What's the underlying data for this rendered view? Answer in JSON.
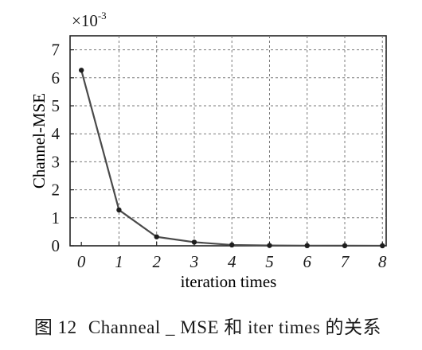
{
  "chart_data": {
    "type": "line",
    "title": "",
    "xlabel": "iteration times",
    "ylabel": "Channel-MSE",
    "y_exponent": "×10-3",
    "x": [
      0,
      1,
      2,
      3,
      4,
      5,
      6,
      7,
      8
    ],
    "series": [
      {
        "values": [
          0.00627,
          0.00128,
          0.00032,
          0.00013,
          3e-05,
          1e-05,
          5e-06,
          3e-06,
          2e-06
        ]
      }
    ],
    "xlim": [
      -0.3,
      8.1
    ],
    "ylim": [
      0,
      0.0075
    ],
    "xticks": [
      "0",
      "1",
      "2",
      "3",
      "4",
      "5",
      "6",
      "7",
      "8"
    ],
    "yticks": [
      "0",
      "1",
      "2",
      "3",
      "4",
      "5",
      "6",
      "7"
    ],
    "grid": true,
    "colors": {
      "line": "#4a4a4a",
      "marker": "#1e1e1e",
      "grid": "#7a7a7a",
      "axes": "#222222"
    }
  },
  "caption": {
    "figure_label": "图 12",
    "text": "Channeal _ MSE 和 iter times 的关系"
  }
}
